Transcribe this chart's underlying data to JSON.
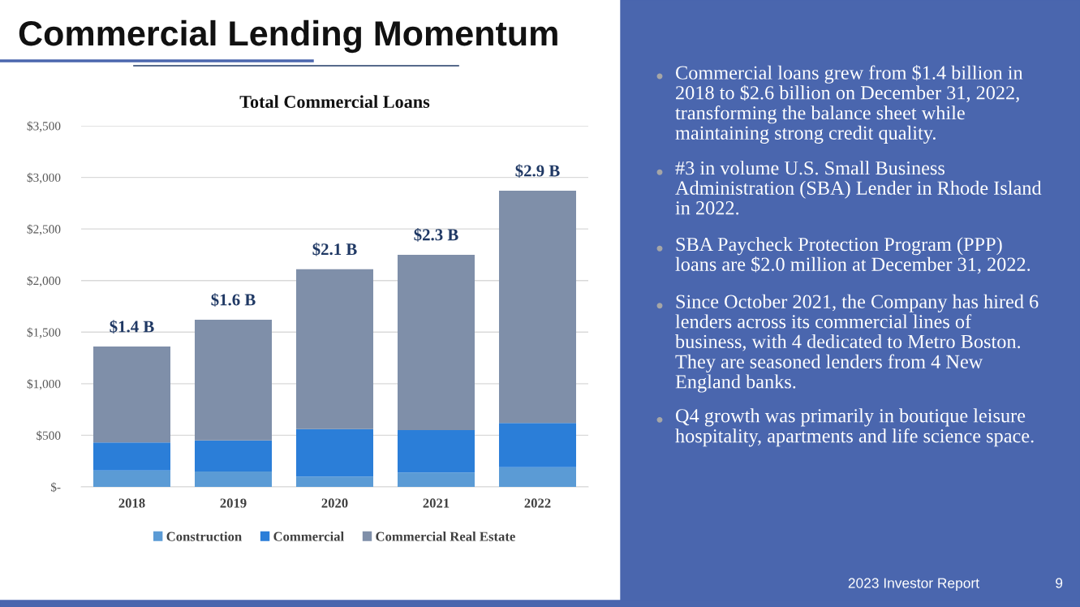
{
  "chart_data": {
    "type": "bar",
    "title": "Commercial Lending Momentum",
    "subtitle": "Total Commercial Loans",
    "categories": [
      "2018",
      "2019",
      "2020",
      "2021",
      "2022"
    ],
    "stacked": true,
    "series": [
      {
        "name": "Construction",
        "color": "#5b9bd5",
        "values": [
          160,
          150,
          100,
          140,
          190
        ]
      },
      {
        "name": "Commercial",
        "color": "#2b7ed8",
        "values": [
          270,
          300,
          460,
          410,
          430
        ]
      },
      {
        "name": "Commercial Real Estate",
        "color": "#7f8fa9",
        "values": [
          930,
          1170,
          1550,
          1700,
          2250
        ]
      }
    ],
    "totals": [
      "$1.4 B",
      "$1.6 B",
      "$2.1 B",
      "$2.3 B",
      "$2.9 B"
    ],
    "ylim": [
      0,
      3500
    ],
    "yticks": [
      {
        "value": 0,
        "label": "$-"
      },
      {
        "value": 500,
        "label": "$500"
      },
      {
        "value": 1000,
        "label": "$1,000"
      },
      {
        "value": 1500,
        "label": "$1,500"
      },
      {
        "value": 2000,
        "label": "$2,000"
      },
      {
        "value": 2500,
        "label": "$2,500"
      },
      {
        "value": 3000,
        "label": "$3,000"
      },
      {
        "value": 3500,
        "label": "$3,500"
      }
    ],
    "grid": "y",
    "legend": "bottom",
    "annotations": [
      "Commercial loans grew from $1.4 billion in 2018 to $2.6 billion on December 31, 2022, transforming the balance sheet while maintaining strong credit quality.",
      "#3 in volume U.S. Small Business Administration (SBA) Lender in Rhode Island in 2022.",
      "SBA Paycheck Protection Program (PPP) loans are $2.0 million at December 31, 2022.",
      "Since October 2021, the Company has hired 6 lenders across its commercial lines of business, with 4 dedicated to Metro Boston. They are seasoned lenders from 4 New England banks.",
      "Q4 growth was primarily in boutique leisure hospitality, apartments and life science space.",
      "2023 Investor Report",
      "9"
    ]
  }
}
